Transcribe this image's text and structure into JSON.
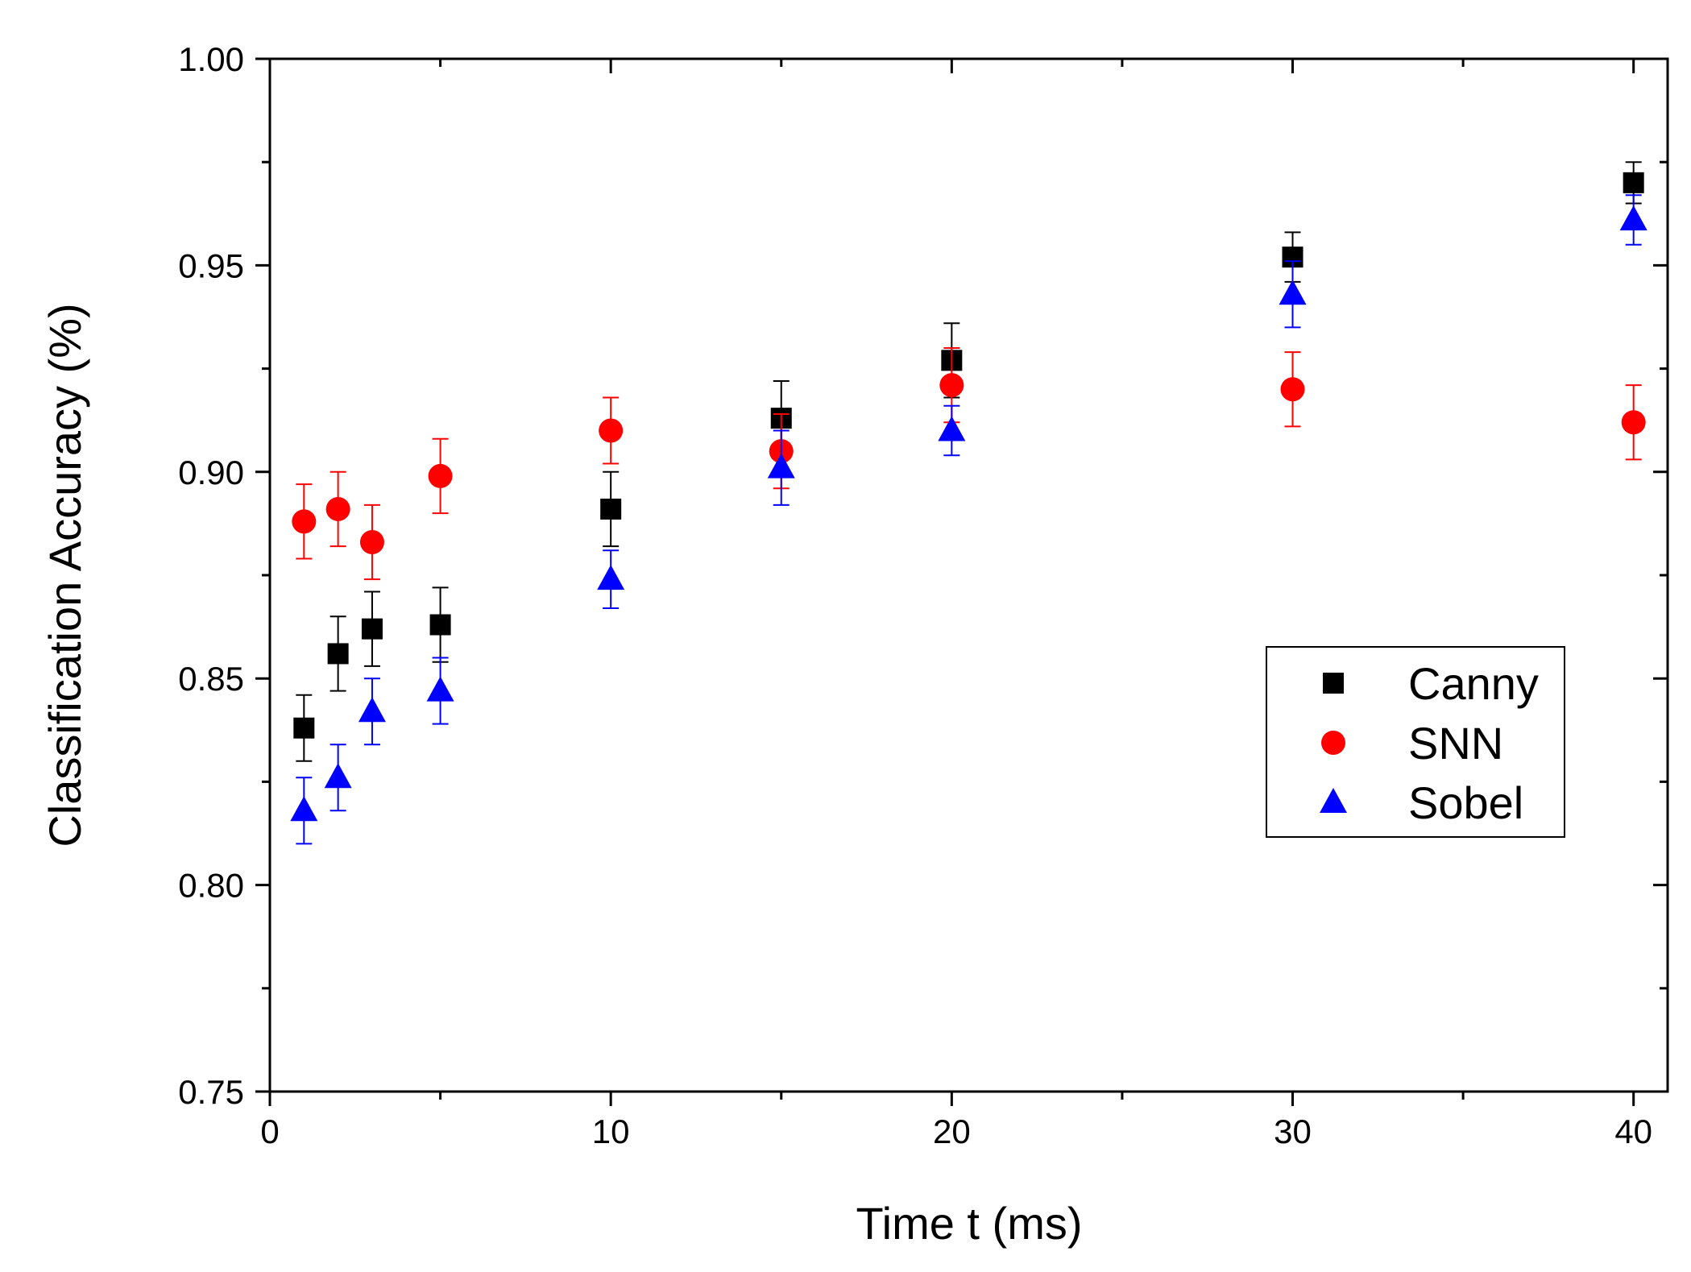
{
  "chart_data": {
    "type": "scatter",
    "title": "",
    "xlabel": "Time t (ms)",
    "ylabel": "Classification Accuracy (%)",
    "xlim": [
      0,
      41
    ],
    "ylim": [
      0.75,
      1.0
    ],
    "x_ticks": [
      0,
      10,
      20,
      30,
      40
    ],
    "x_tick_labels": [
      "0",
      "10",
      "20",
      "30",
      "40"
    ],
    "x_minor_ticks": [
      5,
      15,
      25,
      35
    ],
    "y_ticks": [
      0.75,
      0.8,
      0.85,
      0.9,
      0.95,
      1.0
    ],
    "y_tick_labels": [
      "0.75",
      "0.80",
      "0.85",
      "0.90",
      "0.95",
      "1.00"
    ],
    "y_minor_ticks": [
      0.775,
      0.825,
      0.875,
      0.925,
      0.975
    ],
    "grid": false,
    "legend_position": "center-right",
    "series": [
      {
        "name": "Canny",
        "color": "#000000",
        "marker": "square",
        "x": [
          1,
          2,
          3,
          5,
          10,
          15,
          20,
          30,
          40
        ],
        "y": [
          0.838,
          0.856,
          0.862,
          0.863,
          0.891,
          0.913,
          0.927,
          0.952,
          0.97
        ],
        "err": [
          0.008,
          0.009,
          0.009,
          0.009,
          0.009,
          0.009,
          0.009,
          0.006,
          0.005
        ]
      },
      {
        "name": "SNN",
        "color": "#ff0000",
        "marker": "circle",
        "x": [
          1,
          2,
          3,
          5,
          10,
          15,
          20,
          30,
          40
        ],
        "y": [
          0.888,
          0.891,
          0.883,
          0.899,
          0.91,
          0.905,
          0.921,
          0.92,
          0.912
        ],
        "err": [
          0.009,
          0.009,
          0.009,
          0.009,
          0.008,
          0.009,
          0.009,
          0.009,
          0.009
        ]
      },
      {
        "name": "Sobel",
        "color": "#0000ff",
        "marker": "triangle",
        "x": [
          1,
          2,
          3,
          5,
          10,
          15,
          20,
          30,
          40
        ],
        "y": [
          0.818,
          0.826,
          0.842,
          0.847,
          0.874,
          0.901,
          0.91,
          0.943,
          0.961
        ],
        "err": [
          0.008,
          0.008,
          0.008,
          0.008,
          0.007,
          0.009,
          0.006,
          0.008,
          0.006
        ]
      }
    ]
  }
}
